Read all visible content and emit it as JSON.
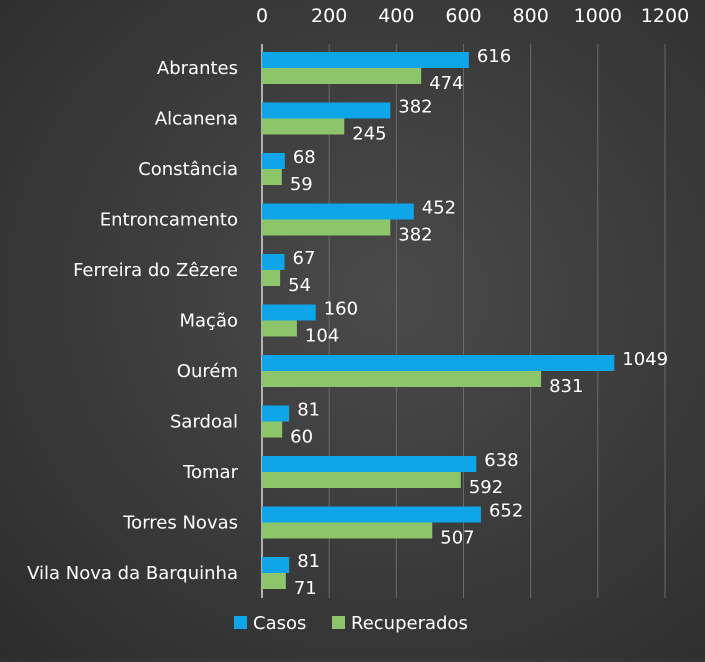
{
  "chart_data": {
    "type": "bar",
    "orientation": "horizontal",
    "categories": [
      "Abrantes",
      "Alcanena",
      "Constância",
      "Entroncamento",
      "Ferreira do Zêzere",
      "Mação",
      "Ourém",
      "Sardoal",
      "Tomar",
      "Torres Novas",
      "Vila Nova da Barquinha"
    ],
    "series": [
      {
        "name": "Casos",
        "color": "#0ea5e9",
        "values": [
          616,
          382,
          68,
          452,
          67,
          160,
          1049,
          81,
          638,
          652,
          81
        ]
      },
      {
        "name": "Recuperados",
        "color": "#8cc56a",
        "values": [
          474,
          245,
          59,
          382,
          54,
          104,
          831,
          60,
          592,
          507,
          71
        ]
      }
    ],
    "xlim": [
      0,
      1200
    ],
    "x_ticks": [
      0,
      200,
      400,
      600,
      800,
      1000,
      1200
    ],
    "x_axis_position": "top",
    "grid": true,
    "data_labels": true,
    "legend_position": "bottom"
  }
}
